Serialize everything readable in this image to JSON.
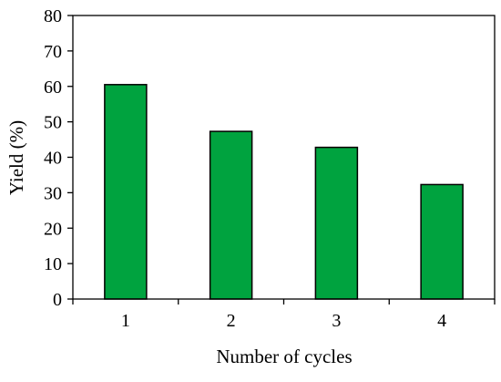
{
  "chart_data": {
    "type": "bar",
    "categories": [
      "1",
      "2",
      "3",
      "4"
    ],
    "values": [
      60.5,
      47.3,
      42.8,
      32.3
    ],
    "title": "",
    "xlabel": "Number of cycles",
    "ylabel": "Yield (%)",
    "ylim": [
      0,
      80
    ],
    "yticks": [
      0,
      10,
      20,
      30,
      40,
      50,
      60,
      70,
      80
    ],
    "grid": false,
    "legend": "none",
    "bar_color": "#00A33F",
    "bar_edge_color": "#000000"
  }
}
